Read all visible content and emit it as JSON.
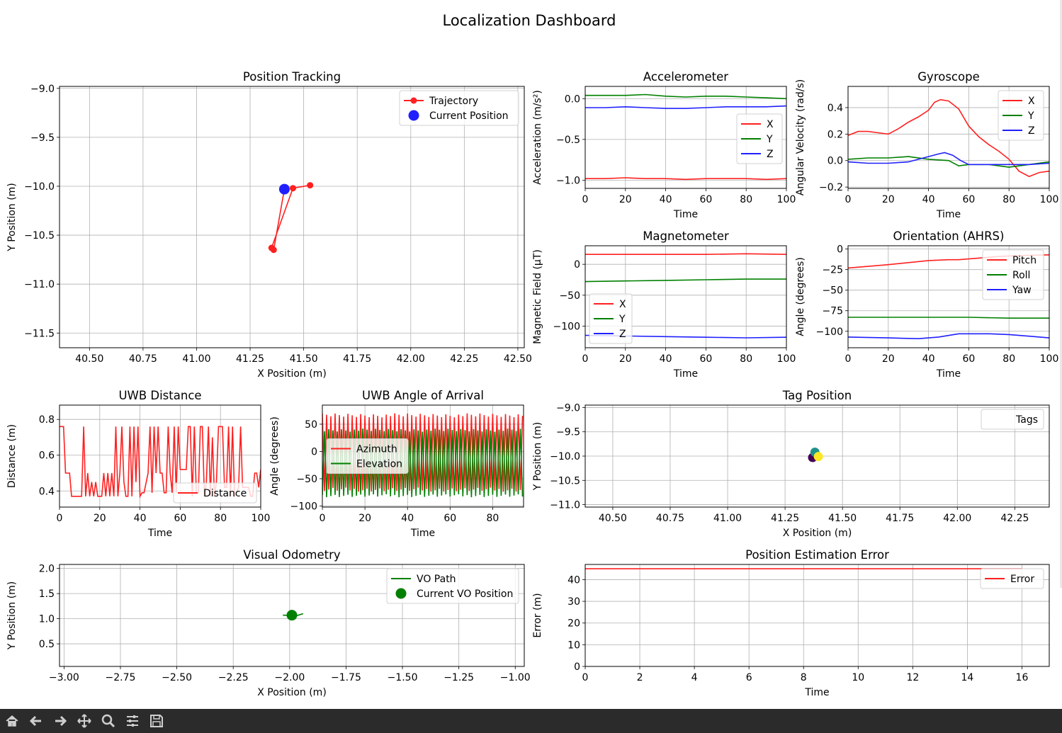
{
  "figure_title": "Localization Dashboard",
  "toolbar": {
    "buttons": [
      {
        "name": "home-button",
        "icon": "home-icon"
      },
      {
        "name": "back-button",
        "icon": "arrow-left-icon"
      },
      {
        "name": "forward-button",
        "icon": "arrow-right-icon"
      },
      {
        "name": "pan-button",
        "icon": "move-icon"
      },
      {
        "name": "zoom-button",
        "icon": "zoom-icon"
      },
      {
        "name": "configure-subplots-button",
        "icon": "sliders-icon"
      },
      {
        "name": "save-button",
        "icon": "save-icon"
      }
    ]
  },
  "chart_data": [
    {
      "id": "position",
      "type": "line",
      "title": "Position Tracking",
      "xlabel": "X Position (m)",
      "ylabel": "Y Position (m)",
      "xlim": [
        40.36,
        42.53
      ],
      "ylim": [
        -11.65,
        -8.98
      ],
      "xticks": [
        40.5,
        40.75,
        41.0,
        41.25,
        41.5,
        41.75,
        42.0,
        42.25,
        42.5
      ],
      "xticklabels": [
        "40.50",
        "40.75",
        "41.00",
        "41.25",
        "41.50",
        "41.75",
        "42.00",
        "42.25",
        "42.50"
      ],
      "yticks": [
        -9.0,
        -9.5,
        -10.0,
        -10.5,
        -11.0,
        -11.5
      ],
      "yticklabels": [
        "−9.0",
        "−9.5",
        "−10.0",
        "−10.5",
        "−11.0",
        "−11.5"
      ],
      "grid": true,
      "legend": "top-right",
      "series": [
        {
          "name": "Trajectory",
          "color": "#ff2020",
          "style": "line-marker",
          "x": [
            41.53,
            41.45,
            41.35,
            41.36,
            41.41
          ],
          "y": [
            -9.99,
            -10.02,
            -10.63,
            -10.65,
            -10.03
          ]
        },
        {
          "name": "Current Position",
          "color": "#2020ff",
          "style": "point",
          "x": [
            41.41
          ],
          "y": [
            -10.03
          ]
        }
      ]
    },
    {
      "id": "accel",
      "type": "line",
      "title": "Accelerometer",
      "xlabel": "Time",
      "ylabel": "Acceleration (m/s²)",
      "xlim": [
        0,
        100
      ],
      "ylim": [
        -1.1,
        0.15
      ],
      "xticks": [
        0,
        20,
        40,
        60,
        80,
        100
      ],
      "xticklabels": [
        "0",
        "20",
        "40",
        "60",
        "80",
        "100"
      ],
      "yticks": [
        0.0,
        -0.5,
        -1.0
      ],
      "yticklabels": [
        "0.0",
        "−0.5",
        "−1.0"
      ],
      "grid": true,
      "legend": "center-right",
      "series": [
        {
          "name": "X",
          "color": "#ff2020",
          "x": [
            0,
            10,
            20,
            30,
            40,
            50,
            60,
            70,
            80,
            90,
            100
          ],
          "y": [
            -0.98,
            -0.98,
            -0.97,
            -0.98,
            -0.98,
            -0.99,
            -0.98,
            -0.98,
            -0.98,
            -0.99,
            -0.98
          ]
        },
        {
          "name": "Y",
          "color": "#008000",
          "x": [
            0,
            10,
            20,
            30,
            40,
            50,
            60,
            70,
            80,
            90,
            100
          ],
          "y": [
            0.04,
            0.04,
            0.04,
            0.05,
            0.03,
            0.02,
            0.03,
            0.03,
            0.02,
            0.01,
            0.0
          ]
        },
        {
          "name": "Z",
          "color": "#2020ff",
          "x": [
            0,
            10,
            20,
            30,
            40,
            50,
            60,
            70,
            80,
            90,
            100
          ],
          "y": [
            -0.11,
            -0.11,
            -0.1,
            -0.11,
            -0.12,
            -0.12,
            -0.11,
            -0.1,
            -0.1,
            -0.1,
            -0.09
          ]
        }
      ]
    },
    {
      "id": "gyro",
      "type": "line",
      "title": "Gyroscope",
      "xlabel": "Time",
      "ylabel": "Angular Velocity (rad/s)",
      "xlim": [
        0,
        100
      ],
      "ylim": [
        -0.21,
        0.56
      ],
      "xticks": [
        0,
        20,
        40,
        60,
        80,
        100
      ],
      "xticklabels": [
        "0",
        "20",
        "40",
        "60",
        "80",
        "100"
      ],
      "yticks": [
        0.4,
        0.2,
        0.0,
        -0.2
      ],
      "yticklabels": [
        "0.4",
        "0.2",
        "0.0",
        "−0.2"
      ],
      "grid": true,
      "legend": "top-right",
      "series": [
        {
          "name": "X",
          "color": "#ff2020",
          "x": [
            0,
            5,
            10,
            15,
            20,
            25,
            30,
            35,
            40,
            43,
            46,
            50,
            55,
            60,
            65,
            70,
            75,
            80,
            85,
            90,
            95,
            100
          ],
          "y": [
            0.19,
            0.22,
            0.22,
            0.21,
            0.2,
            0.24,
            0.29,
            0.33,
            0.38,
            0.44,
            0.46,
            0.45,
            0.39,
            0.26,
            0.18,
            0.12,
            0.07,
            0.01,
            -0.08,
            -0.12,
            -0.09,
            -0.08
          ]
        },
        {
          "name": "Y",
          "color": "#008000",
          "x": [
            0,
            10,
            20,
            30,
            40,
            50,
            55,
            60,
            70,
            80,
            90,
            100
          ],
          "y": [
            0.01,
            0.02,
            0.02,
            0.03,
            0.01,
            0.0,
            -0.04,
            -0.03,
            -0.03,
            -0.05,
            -0.03,
            -0.01
          ]
        },
        {
          "name": "Z",
          "color": "#2020ff",
          "x": [
            0,
            10,
            20,
            30,
            40,
            45,
            48,
            52,
            56,
            60,
            70,
            80,
            90,
            100
          ],
          "y": [
            -0.01,
            -0.02,
            -0.02,
            -0.01,
            0.03,
            0.05,
            0.06,
            0.04,
            0.0,
            -0.03,
            -0.03,
            -0.03,
            -0.03,
            -0.02
          ]
        }
      ]
    },
    {
      "id": "mag",
      "type": "line",
      "title": "Magnetometer",
      "xlabel": "Time",
      "ylabel": "Magnetic Field (µT)",
      "xlim": [
        0,
        100
      ],
      "ylim": [
        -135,
        30
      ],
      "xticks": [
        0,
        20,
        40,
        60,
        80,
        100
      ],
      "xticklabels": [
        "0",
        "20",
        "40",
        "60",
        "80",
        "100"
      ],
      "yticks": [
        0,
        -50,
        -100
      ],
      "yticklabels": [
        "0",
        "−50",
        "−100"
      ],
      "grid": true,
      "legend": "lower-left",
      "series": [
        {
          "name": "X",
          "color": "#ff2020",
          "x": [
            0,
            20,
            40,
            60,
            80,
            100
          ],
          "y": [
            16,
            16,
            16,
            16,
            17,
            16
          ]
        },
        {
          "name": "Y",
          "color": "#008000",
          "x": [
            0,
            20,
            40,
            60,
            80,
            100
          ],
          "y": [
            -28,
            -27,
            -26,
            -25,
            -24,
            -24
          ]
        },
        {
          "name": "Z",
          "color": "#2020ff",
          "x": [
            0,
            20,
            40,
            60,
            80,
            100
          ],
          "y": [
            -115,
            -116,
            -117,
            -118,
            -119,
            -118
          ]
        }
      ]
    },
    {
      "id": "ahrs",
      "type": "line",
      "title": "Orientation (AHRS)",
      "xlabel": "Time",
      "ylabel": "Angle (degrees)",
      "xlim": [
        0,
        100
      ],
      "ylim": [
        -120,
        4
      ],
      "xticks": [
        0,
        20,
        40,
        60,
        80,
        100
      ],
      "xticklabels": [
        "0",
        "20",
        "40",
        "60",
        "80",
        "100"
      ],
      "yticks": [
        0,
        -25,
        -50,
        -75,
        -100
      ],
      "yticklabels": [
        "0",
        "−25",
        "−50",
        "−75",
        "−100"
      ],
      "grid": true,
      "legend": "top-right",
      "series": [
        {
          "name": "Pitch",
          "color": "#ff2020",
          "x": [
            0,
            20,
            40,
            50,
            55,
            65,
            75,
            85,
            100
          ],
          "y": [
            -23,
            -19,
            -14,
            -13,
            -13,
            -11,
            -9,
            -8,
            -7
          ]
        },
        {
          "name": "Roll",
          "color": "#008000",
          "x": [
            0,
            20,
            40,
            60,
            80,
            100
          ],
          "y": [
            -83,
            -83,
            -83,
            -83,
            -84,
            -84
          ]
        },
        {
          "name": "Yaw",
          "color": "#2020ff",
          "x": [
            0,
            20,
            35,
            45,
            55,
            60,
            70,
            80,
            90,
            100
          ],
          "y": [
            -107,
            -108,
            -109,
            -107,
            -103,
            -103,
            -103,
            -104,
            -106,
            -108
          ]
        }
      ]
    },
    {
      "id": "uwb_dist",
      "type": "line",
      "title": "UWB Distance",
      "xlabel": "Time",
      "ylabel": "Distance (m)",
      "xlim": [
        0,
        100
      ],
      "ylim": [
        0.31,
        0.88
      ],
      "xticks": [
        0,
        20,
        40,
        60,
        80,
        100
      ],
      "xticklabels": [
        "0",
        "20",
        "40",
        "60",
        "80",
        "100"
      ],
      "yticks": [
        0.8,
        0.6,
        0.4
      ],
      "yticklabels": [
        "0.8",
        "0.6",
        "0.4"
      ],
      "grid": true,
      "legend": "lower-right",
      "series": [
        {
          "name": "Distance",
          "color": "#ff2020",
          "x": [
            0,
            2,
            3,
            5,
            6,
            9,
            11,
            12,
            13,
            14,
            15,
            16,
            17,
            18,
            19,
            21,
            22,
            23,
            24,
            25,
            26,
            27,
            28,
            29,
            30,
            31,
            32,
            33,
            34,
            35,
            36,
            37,
            38,
            39,
            40,
            41,
            42,
            44,
            45,
            46,
            47,
            48,
            49,
            50,
            51,
            52,
            53,
            54,
            55,
            56,
            57,
            58,
            59,
            60,
            61,
            62,
            63,
            64,
            65,
            66,
            67,
            68,
            69,
            70,
            71,
            72,
            73,
            74,
            75,
            76,
            77,
            78,
            79,
            80,
            81,
            82,
            83,
            84,
            85,
            86,
            87,
            88,
            89,
            90,
            91,
            92,
            94,
            95,
            96,
            97,
            98,
            99,
            100
          ],
          "y": [
            0.76,
            0.76,
            0.5,
            0.5,
            0.37,
            0.37,
            0.37,
            0.76,
            0.37,
            0.5,
            0.37,
            0.45,
            0.37,
            0.45,
            0.37,
            0.37,
            0.5,
            0.37,
            0.5,
            0.37,
            0.5,
            0.37,
            0.76,
            0.37,
            0.5,
            0.76,
            0.45,
            0.37,
            0.37,
            0.76,
            0.37,
            0.76,
            0.45,
            0.76,
            0.37,
            0.39,
            0.39,
            0.5,
            0.76,
            0.39,
            0.76,
            0.5,
            0.76,
            0.5,
            0.5,
            0.39,
            0.39,
            0.76,
            0.5,
            0.39,
            0.76,
            0.39,
            0.76,
            0.52,
            0.52,
            0.52,
            0.52,
            0.76,
            0.76,
            0.37,
            0.76,
            0.39,
            0.39,
            0.76,
            0.76,
            0.37,
            0.45,
            0.76,
            0.37,
            0.7,
            0.37,
            0.45,
            0.76,
            0.76,
            0.76,
            0.42,
            0.42,
            0.76,
            0.37,
            0.76,
            0.37,
            0.39,
            0.42,
            0.76,
            0.42,
            0.42,
            0.42,
            0.37,
            0.37,
            0.5,
            0.5,
            0.42,
            0.52
          ]
        }
      ]
    },
    {
      "id": "uwb_aoa",
      "type": "line",
      "title": "UWB Angle of Arrival",
      "xlabel": "Time",
      "ylabel": "Angle (degrees)",
      "xlim": [
        0,
        94.5
      ],
      "ylim": [
        -102,
        85
      ],
      "xticks": [
        0,
        20,
        40,
        60,
        80
      ],
      "xticklabels": [
        "0",
        "20",
        "40",
        "60",
        "80"
      ],
      "yticks": [
        50,
        0,
        -50,
        -100
      ],
      "yticklabels": [
        "50",
        "0",
        "−50",
        "−100"
      ],
      "grid": true,
      "legend": "center-left",
      "series": [
        {
          "name": "Azimuth",
          "color": "#ff2020",
          "pattern": "alternating",
          "high": 70,
          "low": -74,
          "jitter": 8,
          "step": 1
        },
        {
          "name": "Elevation",
          "color": "#008000",
          "pattern": "alternating",
          "high": 42,
          "low": -84,
          "jitter": 6,
          "step": 1,
          "phase": 1
        }
      ]
    },
    {
      "id": "tag",
      "type": "scatter",
      "title": "Tag Position",
      "xlabel": "X Position (m)",
      "ylabel": "Y Position (m)",
      "xlim": [
        40.38,
        42.4
      ],
      "ylim": [
        -11.05,
        -8.95
      ],
      "xticks": [
        40.5,
        40.75,
        41.0,
        41.25,
        41.5,
        41.75,
        42.0,
        42.25
      ],
      "xticklabels": [
        "40.50",
        "40.75",
        "41.00",
        "41.25",
        "41.50",
        "41.75",
        "42.00",
        "42.25"
      ],
      "yticks": [
        -9.0,
        -9.5,
        -10.0,
        -10.5,
        -11.0
      ],
      "yticklabels": [
        "−9.0",
        "−9.5",
        "−10.0",
        "−10.5",
        "−11.0"
      ],
      "grid": true,
      "legend": "top-right",
      "legend_label": "Tags",
      "points": [
        {
          "x": 41.37,
          "y": -10.03,
          "color": "#440154"
        },
        {
          "x": 41.38,
          "y": -9.92,
          "color": "#21918c"
        },
        {
          "x": 41.395,
          "y": -10.01,
          "color": "#fde725"
        }
      ]
    },
    {
      "id": "vo",
      "type": "line",
      "title": "Visual Odometry",
      "xlabel": "X Position (m)",
      "ylabel": "Y Position (m)",
      "xlim": [
        -3.02,
        -0.96
      ],
      "ylim": [
        0.05,
        2.08
      ],
      "xticks": [
        -3.0,
        -2.75,
        -2.5,
        -2.25,
        -2.0,
        -1.75,
        -1.5,
        -1.25,
        -1.0
      ],
      "xticklabels": [
        "−3.00",
        "−2.75",
        "−2.50",
        "−2.25",
        "−2.00",
        "−1.75",
        "−1.50",
        "−1.25",
        "−1.00"
      ],
      "yticks": [
        2.0,
        1.5,
        1.0,
        0.5
      ],
      "yticklabels": [
        "2.0",
        "1.5",
        "1.0",
        "0.5"
      ],
      "grid": true,
      "legend": "top-right",
      "series": [
        {
          "name": "VO Path",
          "color": "#008000",
          "style": "line",
          "x": [
            -2.03,
            -1.97,
            -1.94
          ],
          "y": [
            1.07,
            1.06,
            1.1
          ]
        },
        {
          "name": "Current VO Position",
          "color": "#008000",
          "style": "point",
          "x": [
            -1.99
          ],
          "y": [
            1.07
          ]
        }
      ]
    },
    {
      "id": "error",
      "type": "line",
      "title": "Position Estimation Error",
      "xlabel": "Time",
      "ylabel": "Error (m)",
      "xlim": [
        0,
        17
      ],
      "ylim": [
        0,
        47
      ],
      "xticks": [
        0,
        2,
        4,
        6,
        8,
        10,
        12,
        14,
        16
      ],
      "xticklabels": [
        "0",
        "2",
        "4",
        "6",
        "8",
        "10",
        "12",
        "14",
        "16"
      ],
      "yticks": [
        0,
        10,
        20,
        30,
        40
      ],
      "yticklabels": [
        "0",
        "10",
        "20",
        "30",
        "40"
      ],
      "grid": true,
      "legend": "top-right",
      "series": [
        {
          "name": "Error",
          "color": "#ff2020",
          "x": [
            0,
            16
          ],
          "y": [
            45,
            45
          ]
        }
      ]
    }
  ]
}
